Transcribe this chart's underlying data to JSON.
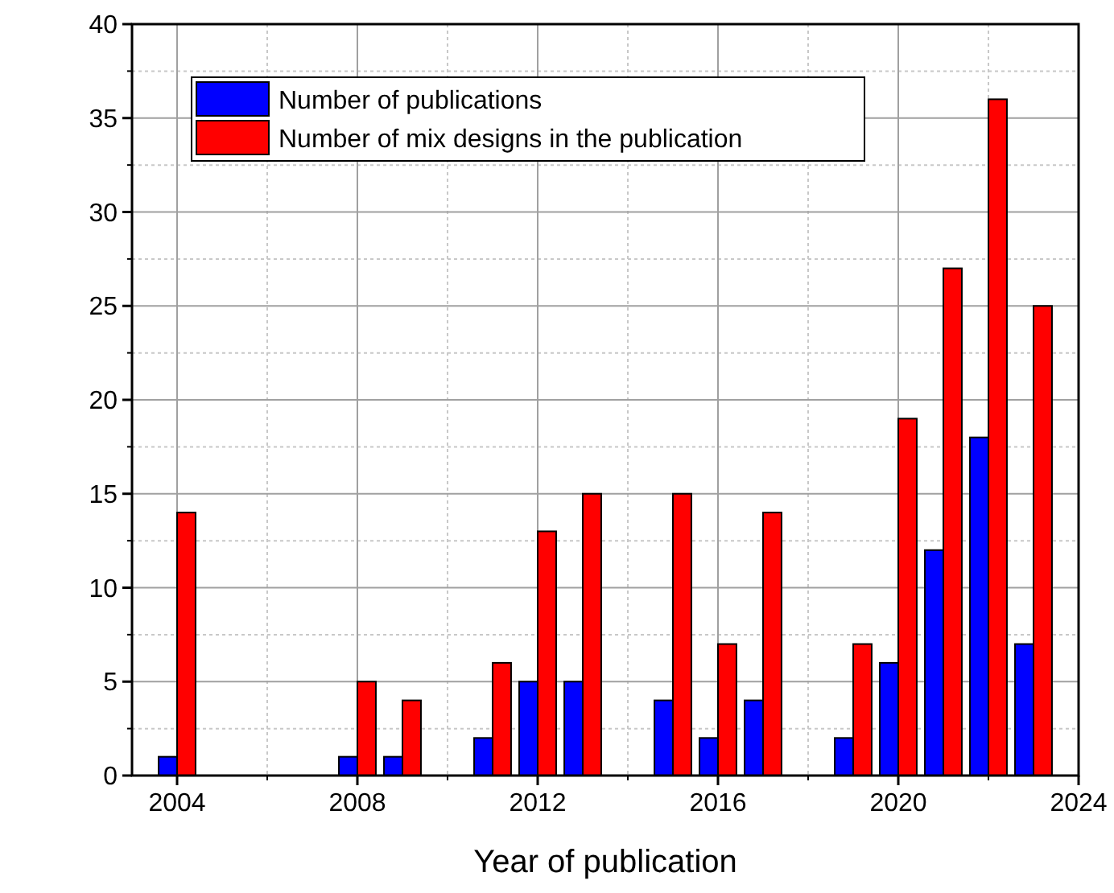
{
  "chart_data": {
    "type": "bar",
    "xlabel": "Year of publication",
    "x": [
      2004,
      2008,
      2009,
      2011,
      2012,
      2013,
      2015,
      2016,
      2017,
      2019,
      2020,
      2021,
      2022,
      2023
    ],
    "series": [
      {
        "name": "Number of publications",
        "color": "#0000ff",
        "values": [
          1,
          1,
          1,
          2,
          5,
          5,
          4,
          2,
          4,
          2,
          6,
          12,
          18,
          7
        ]
      },
      {
        "name": "Number of mix designs in the publication",
        "color": "#ff0000",
        "values": [
          14,
          5,
          4,
          6,
          13,
          15,
          15,
          7,
          14,
          7,
          19,
          27,
          36,
          25
        ]
      }
    ],
    "xlim": [
      2003,
      2024
    ],
    "xticks": [
      2004,
      2008,
      2012,
      2016,
      2020,
      2024
    ],
    "ylim": [
      0,
      40
    ],
    "yticks": [
      0,
      5,
      10,
      15,
      20,
      25,
      30,
      35,
      40
    ],
    "grid": true,
    "legend": "top left"
  }
}
